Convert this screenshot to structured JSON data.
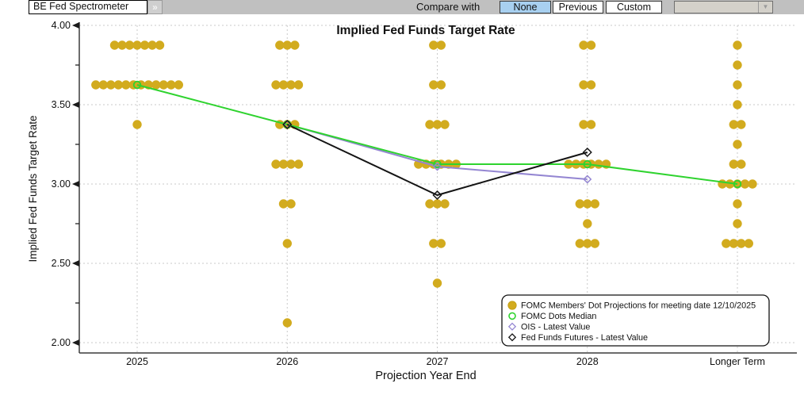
{
  "toolbar": {
    "selector_label": "BE Fed Spectrometer",
    "expand_glyph": "»",
    "compare_with_label": "Compare with",
    "compare_options": [
      "None",
      "Previous",
      "Custom"
    ],
    "selected_compare": "None",
    "compare_dropdown_value": "",
    "colors": {
      "selected_bg": "#a8d0f0",
      "bar_bg": "#c0c0c0"
    }
  },
  "chart_data": {
    "type": "scatter",
    "title": "Implied Fed Funds Target Rate",
    "xlabel": "Projection Year End",
    "ylabel": "Implied Fed Funds Target Rate",
    "ylim": [
      2.0,
      4.0
    ],
    "yticks": [
      {
        "value": 4.0,
        "label": "4.00"
      },
      {
        "value": 3.5,
        "label": "3.50"
      },
      {
        "value": 3.0,
        "label": "3.00"
      },
      {
        "value": 2.5,
        "label": "2.50"
      },
      {
        "value": 2.0,
        "label": "2.00"
      }
    ],
    "minor_tick_step": 0.25,
    "grid": "dashed",
    "legend_position": "bottom-right",
    "categories": [
      "2025",
      "2026",
      "2027",
      "2028",
      "Longer Term"
    ],
    "dot_series_name": "FOMC Members' Dot Projections for meeting date 12/10/2025",
    "dot_color": "#d2ab1e",
    "dots": [
      {
        "category": "2025",
        "rate": 3.875,
        "count": 7
      },
      {
        "category": "2025",
        "rate": 3.625,
        "count": 12
      },
      {
        "category": "2025",
        "rate": 3.375,
        "count": 1
      },
      {
        "category": "2026",
        "rate": 3.875,
        "count": 3
      },
      {
        "category": "2026",
        "rate": 3.625,
        "count": 4
      },
      {
        "category": "2026",
        "rate": 3.375,
        "count": 3
      },
      {
        "category": "2026",
        "rate": 3.125,
        "count": 4
      },
      {
        "category": "2026",
        "rate": 2.875,
        "count": 2
      },
      {
        "category": "2026",
        "rate": 2.625,
        "count": 1
      },
      {
        "category": "2026",
        "rate": 2.125,
        "count": 1
      },
      {
        "category": "2027",
        "rate": 3.875,
        "count": 2
      },
      {
        "category": "2027",
        "rate": 3.625,
        "count": 2
      },
      {
        "category": "2027",
        "rate": 3.375,
        "count": 3
      },
      {
        "category": "2027",
        "rate": 3.125,
        "count": 6
      },
      {
        "category": "2027",
        "rate": 2.875,
        "count": 3
      },
      {
        "category": "2027",
        "rate": 2.625,
        "count": 2
      },
      {
        "category": "2027",
        "rate": 2.375,
        "count": 1
      },
      {
        "category": "2028",
        "rate": 3.875,
        "count": 2
      },
      {
        "category": "2028",
        "rate": 3.625,
        "count": 2
      },
      {
        "category": "2028",
        "rate": 3.375,
        "count": 2
      },
      {
        "category": "2028",
        "rate": 3.125,
        "count": 6
      },
      {
        "category": "2028",
        "rate": 2.875,
        "count": 3
      },
      {
        "category": "2028",
        "rate": 2.75,
        "count": 1
      },
      {
        "category": "2028",
        "rate": 2.625,
        "count": 3
      },
      {
        "category": "Longer Term",
        "rate": 3.875,
        "count": 1
      },
      {
        "category": "Longer Term",
        "rate": 3.75,
        "count": 1
      },
      {
        "category": "Longer Term",
        "rate": 3.625,
        "count": 1
      },
      {
        "category": "Longer Term",
        "rate": 3.5,
        "count": 1
      },
      {
        "category": "Longer Term",
        "rate": 3.375,
        "count": 2
      },
      {
        "category": "Longer Term",
        "rate": 3.25,
        "count": 1
      },
      {
        "category": "Longer Term",
        "rate": 3.125,
        "count": 2
      },
      {
        "category": "Longer Term",
        "rate": 3.0,
        "count": 5
      },
      {
        "category": "Longer Term",
        "rate": 2.875,
        "count": 1
      },
      {
        "category": "Longer Term",
        "rate": 2.75,
        "count": 1
      },
      {
        "category": "Longer Term",
        "rate": 2.625,
        "count": 4
      }
    ],
    "series": [
      {
        "name": "FOMC Dots Median",
        "color": "#2fd32f",
        "marker": "open-circle",
        "points": [
          [
            "2025",
            3.625
          ],
          [
            "2026",
            3.375
          ],
          [
            "2027",
            3.125
          ],
          [
            "2028",
            3.125
          ],
          [
            "Longer Term",
            3.0
          ]
        ]
      },
      {
        "name": "OIS - Latest Value",
        "color": "#9486d2",
        "marker": "open-diamond",
        "points": [
          [
            "2026",
            3.375
          ],
          [
            "2027",
            3.11
          ],
          [
            "2028",
            3.03
          ]
        ]
      },
      {
        "name": "Fed Funds Futures - Latest Value",
        "color": "#141414",
        "marker": "open-diamond",
        "points": [
          [
            "2026",
            3.375
          ],
          [
            "2027",
            2.93
          ],
          [
            "2028",
            3.2
          ]
        ]
      }
    ],
    "legend": [
      {
        "marker": "filled-circle",
        "color": "#d2ab1e",
        "label": "FOMC Members' Dot Projections for meeting date 12/10/2025"
      },
      {
        "marker": "open-circle",
        "color": "#2fd32f",
        "label": "FOMC Dots Median"
      },
      {
        "marker": "open-diamond",
        "color": "#9486d2",
        "label": "OIS - Latest Value"
      },
      {
        "marker": "open-diamond",
        "color": "#141414",
        "label": "Fed Funds Futures - Latest Value"
      }
    ]
  }
}
